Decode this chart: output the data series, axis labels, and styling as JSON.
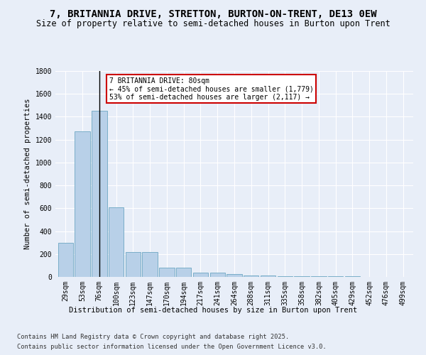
{
  "title": "7, BRITANNIA DRIVE, STRETTON, BURTON-ON-TRENT, DE13 0EW",
  "subtitle": "Size of property relative to semi-detached houses in Burton upon Trent",
  "xlabel": "Distribution of semi-detached houses by size in Burton upon Trent",
  "ylabel": "Number of semi-detached properties",
  "footnote1": "Contains HM Land Registry data © Crown copyright and database right 2025.",
  "footnote2": "Contains public sector information licensed under the Open Government Licence v3.0.",
  "bar_labels": [
    "29sqm",
    "53sqm",
    "76sqm",
    "100sqm",
    "123sqm",
    "147sqm",
    "170sqm",
    "194sqm",
    "217sqm",
    "241sqm",
    "264sqm",
    "288sqm",
    "311sqm",
    "335sqm",
    "358sqm",
    "382sqm",
    "405sqm",
    "429sqm",
    "452sqm",
    "476sqm",
    "499sqm"
  ],
  "bar_values": [
    300,
    1270,
    1450,
    610,
    220,
    220,
    80,
    80,
    40,
    35,
    25,
    15,
    10,
    5,
    5,
    5,
    5,
    5,
    0,
    0,
    0
  ],
  "bar_color": "#b8d0e8",
  "bar_edge_color": "#7aaec8",
  "highlight_index": 2,
  "highlight_line_color": "#000000",
  "ylim": [
    0,
    1800
  ],
  "yticks": [
    0,
    200,
    400,
    600,
    800,
    1000,
    1200,
    1400,
    1600,
    1800
  ],
  "annotation_title": "7 BRITANNIA DRIVE: 80sqm",
  "annotation_line1": "← 45% of semi-detached houses are smaller (1,779)",
  "annotation_line2": "53% of semi-detached houses are larger (2,117) →",
  "annotation_box_color": "#ffffff",
  "annotation_box_edge": "#cc0000",
  "bg_color": "#e8eef8",
  "plot_bg_color": "#e8eef8",
  "title_fontsize": 10,
  "subtitle_fontsize": 8.5,
  "annotation_fontsize": 7,
  "axis_label_fontsize": 7.5,
  "tick_fontsize": 7,
  "ylabel_fontsize": 7.5
}
